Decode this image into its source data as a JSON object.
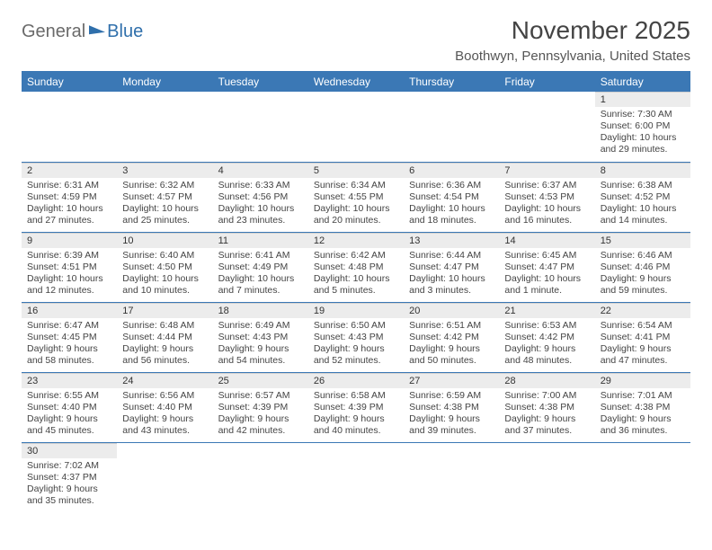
{
  "brand": {
    "part1": "General",
    "part2": "Blue"
  },
  "title": {
    "month": "November 2025",
    "location": "Boothwyn, Pennsylvania, United States"
  },
  "weekdays": [
    "Sunday",
    "Monday",
    "Tuesday",
    "Wednesday",
    "Thursday",
    "Friday",
    "Saturday"
  ],
  "colors": {
    "header_bg": "#3b78b5",
    "header_text": "#ffffff",
    "daynum_bg": "#ececec",
    "rule": "#3b78b5",
    "body_text": "#444444"
  },
  "layout": {
    "first_weekday_index": 6,
    "days_in_month": 30
  },
  "days": {
    "1": {
      "sunrise": "Sunrise: 7:30 AM",
      "sunset": "Sunset: 6:00 PM",
      "daylight": "Daylight: 10 hours and 29 minutes."
    },
    "2": {
      "sunrise": "Sunrise: 6:31 AM",
      "sunset": "Sunset: 4:59 PM",
      "daylight": "Daylight: 10 hours and 27 minutes."
    },
    "3": {
      "sunrise": "Sunrise: 6:32 AM",
      "sunset": "Sunset: 4:57 PM",
      "daylight": "Daylight: 10 hours and 25 minutes."
    },
    "4": {
      "sunrise": "Sunrise: 6:33 AM",
      "sunset": "Sunset: 4:56 PM",
      "daylight": "Daylight: 10 hours and 23 minutes."
    },
    "5": {
      "sunrise": "Sunrise: 6:34 AM",
      "sunset": "Sunset: 4:55 PM",
      "daylight": "Daylight: 10 hours and 20 minutes."
    },
    "6": {
      "sunrise": "Sunrise: 6:36 AM",
      "sunset": "Sunset: 4:54 PM",
      "daylight": "Daylight: 10 hours and 18 minutes."
    },
    "7": {
      "sunrise": "Sunrise: 6:37 AM",
      "sunset": "Sunset: 4:53 PM",
      "daylight": "Daylight: 10 hours and 16 minutes."
    },
    "8": {
      "sunrise": "Sunrise: 6:38 AM",
      "sunset": "Sunset: 4:52 PM",
      "daylight": "Daylight: 10 hours and 14 minutes."
    },
    "9": {
      "sunrise": "Sunrise: 6:39 AM",
      "sunset": "Sunset: 4:51 PM",
      "daylight": "Daylight: 10 hours and 12 minutes."
    },
    "10": {
      "sunrise": "Sunrise: 6:40 AM",
      "sunset": "Sunset: 4:50 PM",
      "daylight": "Daylight: 10 hours and 10 minutes."
    },
    "11": {
      "sunrise": "Sunrise: 6:41 AM",
      "sunset": "Sunset: 4:49 PM",
      "daylight": "Daylight: 10 hours and 7 minutes."
    },
    "12": {
      "sunrise": "Sunrise: 6:42 AM",
      "sunset": "Sunset: 4:48 PM",
      "daylight": "Daylight: 10 hours and 5 minutes."
    },
    "13": {
      "sunrise": "Sunrise: 6:44 AM",
      "sunset": "Sunset: 4:47 PM",
      "daylight": "Daylight: 10 hours and 3 minutes."
    },
    "14": {
      "sunrise": "Sunrise: 6:45 AM",
      "sunset": "Sunset: 4:47 PM",
      "daylight": "Daylight: 10 hours and 1 minute."
    },
    "15": {
      "sunrise": "Sunrise: 6:46 AM",
      "sunset": "Sunset: 4:46 PM",
      "daylight": "Daylight: 9 hours and 59 minutes."
    },
    "16": {
      "sunrise": "Sunrise: 6:47 AM",
      "sunset": "Sunset: 4:45 PM",
      "daylight": "Daylight: 9 hours and 58 minutes."
    },
    "17": {
      "sunrise": "Sunrise: 6:48 AM",
      "sunset": "Sunset: 4:44 PM",
      "daylight": "Daylight: 9 hours and 56 minutes."
    },
    "18": {
      "sunrise": "Sunrise: 6:49 AM",
      "sunset": "Sunset: 4:43 PM",
      "daylight": "Daylight: 9 hours and 54 minutes."
    },
    "19": {
      "sunrise": "Sunrise: 6:50 AM",
      "sunset": "Sunset: 4:43 PM",
      "daylight": "Daylight: 9 hours and 52 minutes."
    },
    "20": {
      "sunrise": "Sunrise: 6:51 AM",
      "sunset": "Sunset: 4:42 PM",
      "daylight": "Daylight: 9 hours and 50 minutes."
    },
    "21": {
      "sunrise": "Sunrise: 6:53 AM",
      "sunset": "Sunset: 4:42 PM",
      "daylight": "Daylight: 9 hours and 48 minutes."
    },
    "22": {
      "sunrise": "Sunrise: 6:54 AM",
      "sunset": "Sunset: 4:41 PM",
      "daylight": "Daylight: 9 hours and 47 minutes."
    },
    "23": {
      "sunrise": "Sunrise: 6:55 AM",
      "sunset": "Sunset: 4:40 PM",
      "daylight": "Daylight: 9 hours and 45 minutes."
    },
    "24": {
      "sunrise": "Sunrise: 6:56 AM",
      "sunset": "Sunset: 4:40 PM",
      "daylight": "Daylight: 9 hours and 43 minutes."
    },
    "25": {
      "sunrise": "Sunrise: 6:57 AM",
      "sunset": "Sunset: 4:39 PM",
      "daylight": "Daylight: 9 hours and 42 minutes."
    },
    "26": {
      "sunrise": "Sunrise: 6:58 AM",
      "sunset": "Sunset: 4:39 PM",
      "daylight": "Daylight: 9 hours and 40 minutes."
    },
    "27": {
      "sunrise": "Sunrise: 6:59 AM",
      "sunset": "Sunset: 4:38 PM",
      "daylight": "Daylight: 9 hours and 39 minutes."
    },
    "28": {
      "sunrise": "Sunrise: 7:00 AM",
      "sunset": "Sunset: 4:38 PM",
      "daylight": "Daylight: 9 hours and 37 minutes."
    },
    "29": {
      "sunrise": "Sunrise: 7:01 AM",
      "sunset": "Sunset: 4:38 PM",
      "daylight": "Daylight: 9 hours and 36 minutes."
    },
    "30": {
      "sunrise": "Sunrise: 7:02 AM",
      "sunset": "Sunset: 4:37 PM",
      "daylight": "Daylight: 9 hours and 35 minutes."
    }
  }
}
